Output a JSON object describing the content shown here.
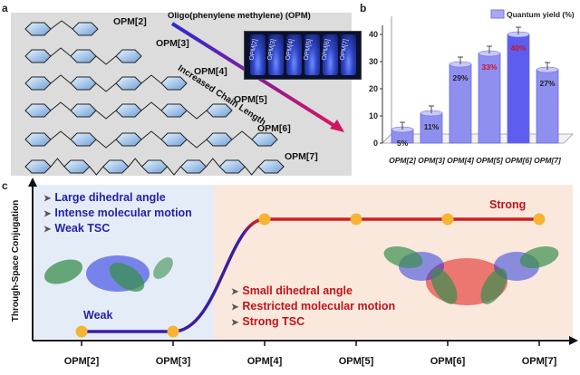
{
  "panel_a": {
    "letter": "a",
    "title": "Oligo(phenylene methylene) (OPM)",
    "arrow_label": "Increased Chain Length",
    "rows": [
      "OPM[2]",
      "OPM[3]",
      "OPM[4]",
      "OPM[5]",
      "OPM[6]",
      "OPM[7]"
    ],
    "vials": [
      "OPM[2]",
      "OPM[3]",
      "OPM[4]",
      "OPM[5]",
      "OPM[6]",
      "OPM[7]"
    ]
  },
  "panel_b": {
    "letter": "b"
  },
  "panel_c": {
    "letter": "c",
    "bullets_left": [
      "Large dihedral angle",
      "Intense molecular motion",
      "Weak TSC"
    ],
    "bullets_right": [
      "Small dihedral angle",
      "Restricted molecular motion",
      "Strong TSC"
    ],
    "weak_label": "Weak",
    "strong_label": "Strong"
  },
  "colors": {
    "blue_text": "#2323a8",
    "red_text": "#c0141a",
    "node": "#f5b533",
    "line_left": "#3a1fa0",
    "line_right": "#d01d1d"
  },
  "chart_data": [
    {
      "type": "bar",
      "title": "",
      "legend": "Quantum yield (%)",
      "legend_position": "top-right",
      "categories": [
        "OPM[2]",
        "OPM[3]",
        "OPM[4]",
        "OPM[5]",
        "OPM[6]",
        "OPM[7]"
      ],
      "values": [
        5,
        11,
        29,
        33,
        40,
        27
      ],
      "data_labels": [
        "5%",
        "11%",
        "29%",
        "33%",
        "40%",
        "27%"
      ],
      "highlight_labels": [
        "33%",
        "40%"
      ],
      "ylim": [
        0,
        40
      ],
      "yticks": [
        0,
        10,
        20,
        30,
        40
      ]
    },
    {
      "type": "line",
      "ylabel": "Through-Space Conjugation",
      "categories": [
        "OPM[2]",
        "OPM[3]",
        "OPM[4]",
        "OPM[5]",
        "OPM[6]",
        "OPM[7]"
      ],
      "values": [
        0,
        0,
        1,
        1,
        1,
        1
      ],
      "ylim": [
        0,
        1
      ]
    }
  ]
}
